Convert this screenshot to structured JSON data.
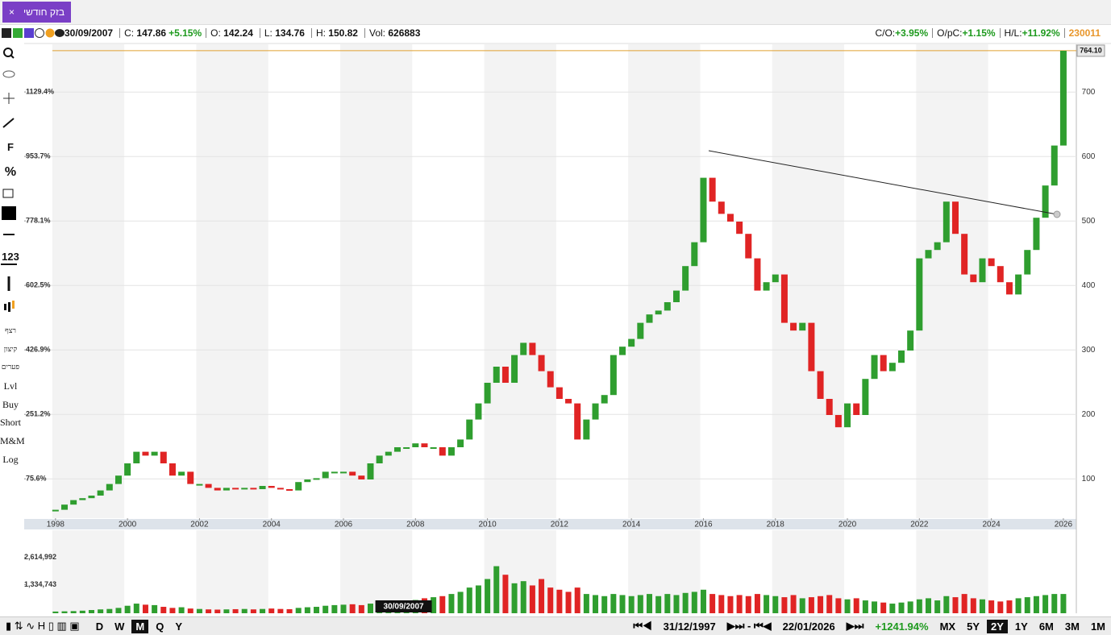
{
  "tab": {
    "label": "בזק חודשי",
    "close": "×"
  },
  "info_bar": {
    "date": "30/09/2007",
    "close_label": "C:",
    "close": "147.86",
    "change": "+5.15%",
    "open_label": "O:",
    "open": "142.24",
    "low_label": "L:",
    "low": "134.76",
    "high_label": "H:",
    "high": "150.82",
    "volume_label": "Vol:",
    "volume": "626883",
    "co_label": "C/O:",
    "co": "+3.95%",
    "opc_label": "O/pC:",
    "opc": "+1.15%",
    "hl_label": "H/L:",
    "hl": "+11.92%",
    "symbol": "230011"
  },
  "toolbar": [
    "F",
    "%",
    "123",
    "רצף",
    "קיצון",
    "פערים",
    "Lvl",
    "Buy",
    "Short",
    "M&M",
    "Log"
  ],
  "bottom_bar": {
    "periods": [
      "D",
      "W",
      "M",
      "Q",
      "Y"
    ],
    "active_period": "M",
    "from": "31/12/1997",
    "to": "22/01/2026",
    "change": "+1241.94%",
    "ranges": [
      "MX",
      "5Y",
      "2Y",
      "1Y",
      "6M",
      "3M",
      "1M"
    ],
    "active_range": "2Y"
  },
  "chart_data": {
    "type": "candlestick",
    "x": [
      1998,
      1998.25,
      1998.5,
      1998.75,
      1999,
      1999.25,
      1999.5,
      1999.75,
      2000,
      2000.25,
      2000.5,
      2000.75,
      2001,
      2001.25,
      2001.5,
      2001.75,
      2002,
      2002.25,
      2002.5,
      2002.75,
      2003,
      2003.25,
      2003.5,
      2003.75,
      2004,
      2004.25,
      2004.5,
      2004.75,
      2005,
      2005.25,
      2005.5,
      2005.75,
      2006,
      2006.25,
      2006.5,
      2006.75,
      2007,
      2007.25,
      2007.5,
      2007.75,
      2008,
      2008.25,
      2008.5,
      2008.75,
      2009,
      2009.25,
      2009.5,
      2009.75,
      2010,
      2010.25,
      2010.5,
      2010.75,
      2011,
      2011.25,
      2011.5,
      2011.75,
      2012,
      2012.25,
      2012.5,
      2012.75,
      2013,
      2013.25,
      2013.5,
      2013.75,
      2014,
      2014.25,
      2014.5,
      2014.75,
      2015,
      2015.25,
      2015.5,
      2015.75,
      2016,
      2016.25,
      2016.5,
      2016.75,
      2017,
      2017.25,
      2017.5,
      2017.75,
      2018,
      2018.25,
      2018.5,
      2018.75,
      2019,
      2019.25,
      2019.5,
      2019.75,
      2020,
      2020.25,
      2020.5,
      2020.75,
      2021,
      2021.25,
      2021.5,
      2021.75,
      2022,
      2022.25,
      2022.5,
      2022.75,
      2023,
      2023.25,
      2023.5,
      2023.75,
      2024,
      2024.25,
      2024.5,
      2024.75,
      2025,
      2025.25,
      2025.5,
      2025.75,
      2026
    ],
    "values": [
      52,
      60,
      67,
      70,
      74,
      82,
      92,
      105,
      124,
      142,
      136,
      142,
      124,
      105,
      111,
      92,
      92,
      86,
      82,
      86,
      84,
      86,
      84,
      89,
      86,
      84,
      82,
      95,
      99,
      101,
      111,
      111,
      111,
      105,
      99,
      124,
      136,
      142,
      149,
      149,
      155,
      149,
      149,
      136,
      149,
      161,
      192,
      217,
      249,
      274,
      249,
      292,
      311,
      292,
      267,
      242,
      224,
      217,
      161,
      192,
      217,
      230,
      292,
      305,
      317,
      342,
      355,
      361,
      374,
      392,
      430,
      467,
      567,
      530,
      511,
      499,
      480,
      442,
      392,
      405,
      417,
      342,
      330,
      342,
      267,
      224,
      199,
      180,
      217,
      199,
      255,
      292,
      267,
      280,
      299,
      330,
      442,
      455,
      467,
      530,
      480,
      417,
      405,
      442,
      430,
      405,
      386,
      417,
      455,
      505,
      555,
      617,
      764
    ],
    "colors": {
      "up": "#2f9e2f",
      "down": "#e02424"
    },
    "xlim": [
      1997.13,
      2026.36
    ],
    "xticks": [
      1998,
      2000,
      2002,
      2004,
      2006,
      2008,
      2010,
      2012,
      2014,
      2016,
      2018,
      2020,
      2022,
      2024,
      2026
    ],
    "ylim": [
      39,
      774
    ],
    "yticks": [
      100,
      200,
      300,
      400,
      500,
      600,
      700
    ],
    "y2lim": [
      -31.5,
      1259.1
    ],
    "y2ticks": [
      {
        "value": 75.6,
        "label": "75.6%"
      },
      {
        "value": 251.2,
        "label": "251.2%"
      },
      {
        "value": 426.9,
        "label": "426.9%"
      },
      {
        "value": 602.5,
        "label": "602.5%"
      },
      {
        "value": 778.1,
        "label": "778.1%"
      },
      {
        "value": 953.7,
        "label": "953.7%"
      },
      {
        "value": 1129.4,
        "label": "1129.4%"
      }
    ],
    "last_price": {
      "value": 764.1,
      "label": "764.10"
    },
    "last_price_color": "#e0a030",
    "crosshair": {
      "x": 2007.67,
      "label": "30/09/2007"
    },
    "grid": true,
    "volume": {
      "values": [
        80000,
        90000,
        100000,
        120000,
        150000,
        180000,
        200000,
        250000,
        350000,
        450000,
        400000,
        380000,
        300000,
        250000,
        280000,
        220000,
        200000,
        180000,
        170000,
        180000,
        190000,
        200000,
        180000,
        200000,
        220000,
        200000,
        190000,
        250000,
        280000,
        300000,
        350000,
        380000,
        400000,
        420000,
        380000,
        450000,
        500000,
        520000,
        550000,
        560000,
        620000,
        700000,
        750000,
        800000,
        900000,
        1000000,
        1200000,
        1300000,
        1600000,
        2200000,
        1800000,
        1400000,
        1500000,
        1300000,
        1600000,
        1200000,
        1100000,
        1000000,
        1200000,
        900000,
        850000,
        800000,
        900000,
        850000,
        800000,
        850000,
        900000,
        800000,
        900000,
        850000,
        950000,
        1000000,
        1100000,
        900000,
        850000,
        800000,
        850000,
        800000,
        900000,
        850000,
        800000,
        750000,
        850000,
        700000,
        750000,
        800000,
        850000,
        700000,
        650000,
        700000,
        600000,
        550000,
        500000,
        450000,
        500000,
        550000,
        650000,
        700000,
        600000,
        800000,
        750000,
        900000,
        700000,
        650000,
        600000,
        550000,
        600000,
        700000,
        750000,
        800000,
        850000,
        900000,
        900000
      ],
      "ylim": [
        0,
        3880000
      ],
      "yticks": [
        {
          "value": 1334743,
          "label": "1,334,743"
        },
        {
          "value": 2614992,
          "label": "2,614,992"
        }
      ]
    }
  }
}
